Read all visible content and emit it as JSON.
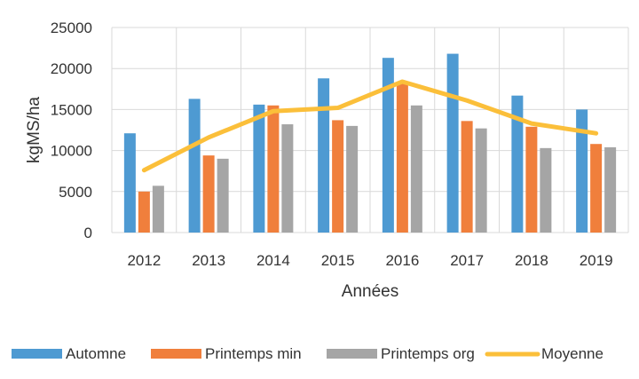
{
  "chart_data": {
    "type": "bar",
    "title": "",
    "xlabel": "Années",
    "ylabel": "kgMS/ha",
    "ylim": [
      0,
      25000
    ],
    "yticks": [
      0,
      5000,
      10000,
      15000,
      20000,
      25000
    ],
    "grid": true,
    "legend_position": "bottom",
    "categories": [
      "2012",
      "2013",
      "2014",
      "2015",
      "2016",
      "2017",
      "2018",
      "2019"
    ],
    "series": [
      {
        "name": "Automne",
        "type": "bar",
        "color": "#4e9ad2",
        "values": [
          12100,
          16300,
          15600,
          18800,
          21300,
          21800,
          16700,
          15000
        ]
      },
      {
        "name": "Printemps min",
        "type": "bar",
        "color": "#f07f3c",
        "values": [
          5000,
          9400,
          15500,
          13700,
          18200,
          13600,
          12900,
          10800
        ]
      },
      {
        "name": "Printemps org",
        "type": "bar",
        "color": "#a5a5a5",
        "values": [
          5700,
          9000,
          13200,
          13000,
          15500,
          12700,
          10300,
          10400
        ]
      },
      {
        "name": "Moyenne",
        "type": "line",
        "color": "#fbbf3a",
        "values": [
          7600,
          11600,
          14800,
          15200,
          18400,
          16100,
          13300,
          12100
        ]
      }
    ]
  }
}
